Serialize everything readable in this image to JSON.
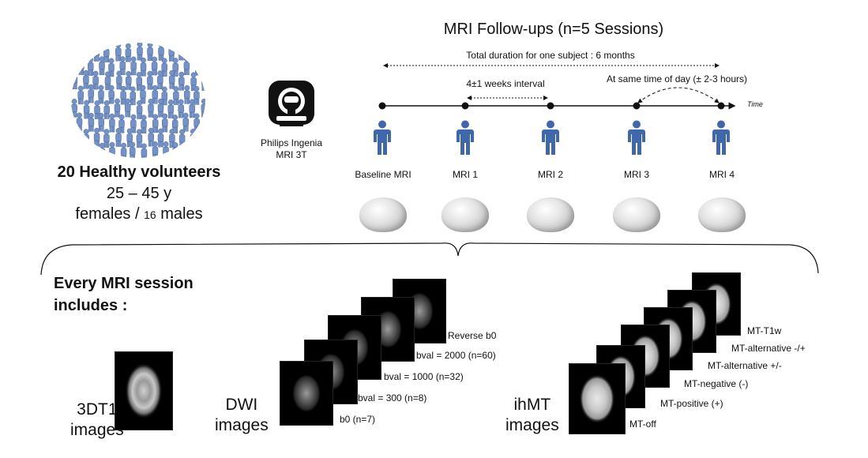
{
  "header": {
    "title": "MRI Follow-ups (n=5 Sessions)",
    "duration": "Total duration for one subject : 6 months",
    "interval": "4±1 weeks interval",
    "same_time": "At same time of day (± 2-3 hours)",
    "time_label": "Time"
  },
  "scanner": {
    "line1": "Philips Ingenia",
    "line2": "MRI 3T",
    "icon": "mri-scanner-icon"
  },
  "volunteers": {
    "title": "20 Healthy volunteers",
    "age": "25 – 45 y",
    "sex_prefix": "females / ",
    "males_count": "16",
    "males_label": " males",
    "icon": "crowd-icon"
  },
  "sessions": [
    {
      "label": "Baseline MRI"
    },
    {
      "label": "MRI 1"
    },
    {
      "label": "MRI 2"
    },
    {
      "label": "MRI 3"
    },
    {
      "label": "MRI 4"
    }
  ],
  "session_contents": {
    "heading": "Every MRI session includes :",
    "heading_line1": "Every MRI session",
    "heading_line2": "includes :",
    "t1": {
      "line1": "3DT1",
      "line2": "images"
    },
    "dwi": {
      "line1": "DWI",
      "line2": "images",
      "labels": [
        "b0 (n=7)",
        "bval = 300 (n=8)",
        "bval = 1000 (n=32)",
        "bval = 2000 (n=60)",
        "Reverse b0"
      ]
    },
    "ihmt": {
      "line1": "ihMT",
      "line2": "images",
      "labels": [
        "MT-off",
        "MT-positive (+)",
        "MT-negative (-)",
        "MT-alternative +/-",
        "MT-alternative -/+",
        "MT-T1w"
      ]
    }
  },
  "colors": {
    "person": "#3f67ad",
    "crowd": "#5a7fc0",
    "line": "#111111"
  }
}
